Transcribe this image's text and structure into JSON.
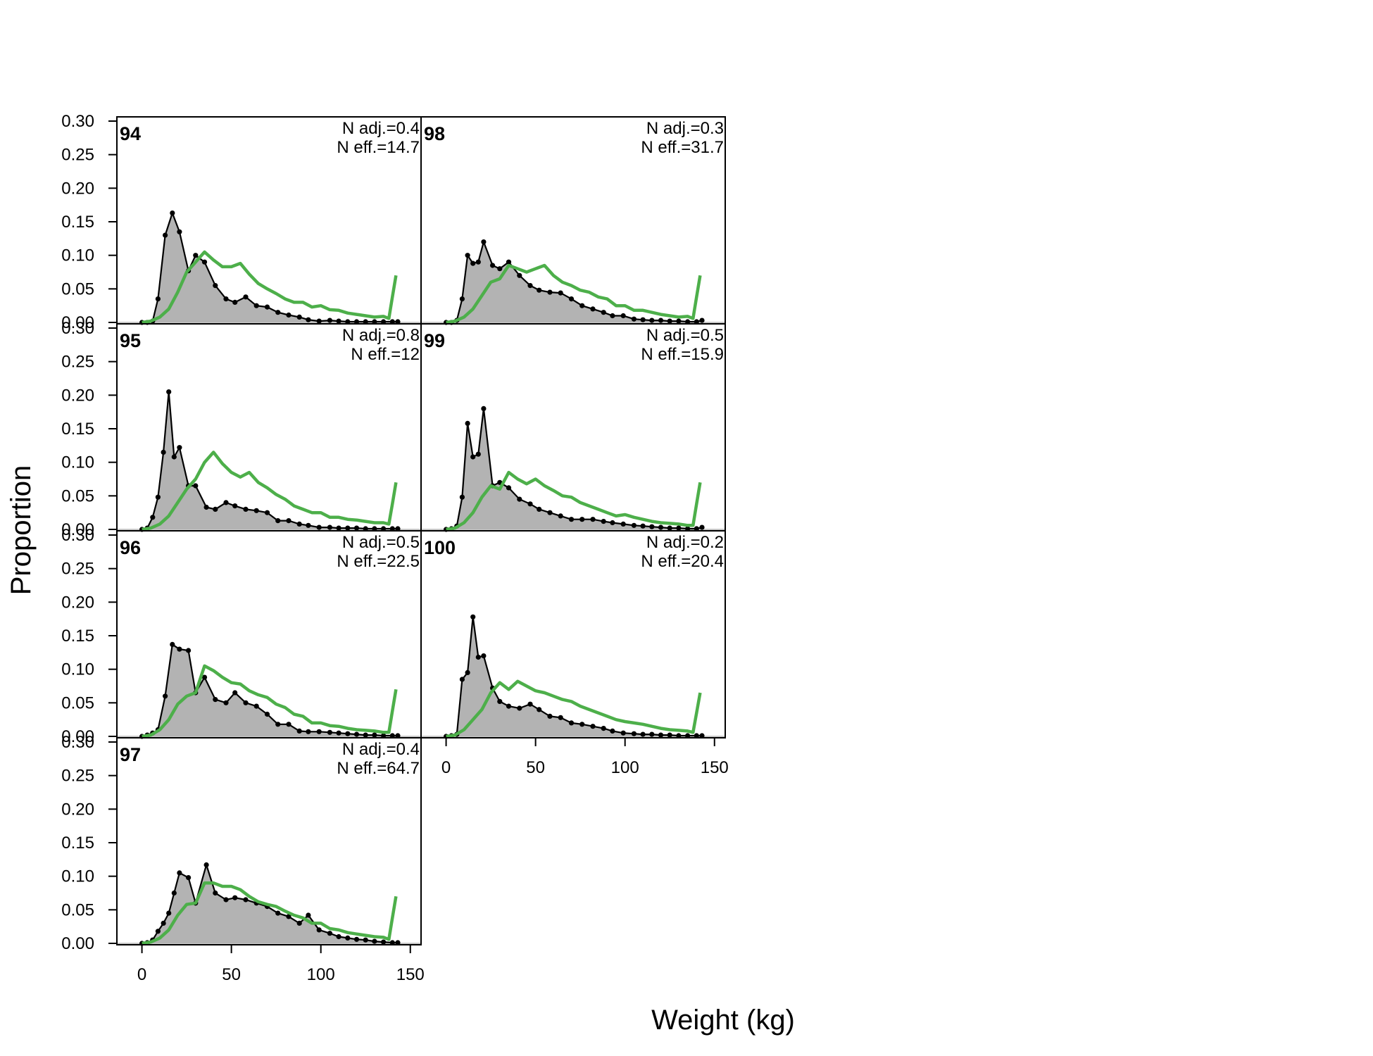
{
  "chart_data": {
    "type": "area",
    "xlabel": "Weight (kg)",
    "ylabel": "Proportion",
    "xlim": [
      -14,
      156
    ],
    "ylim": [
      0,
      0.3
    ],
    "x_ticks": [
      0,
      50,
      100,
      150
    ],
    "y_ticks": [
      0.0,
      0.05,
      0.1,
      0.15,
      0.2,
      0.25,
      0.3
    ],
    "colors": {
      "observed_fill": "#b3b3b3",
      "observed_line": "#000000",
      "expected_line": "#4daf4a",
      "zero_line": "#c8c8c8"
    },
    "x": [
      0,
      2,
      4,
      6,
      8,
      10,
      12,
      14,
      16,
      18,
      20,
      22,
      24,
      26,
      28,
      30,
      32,
      34,
      36,
      38,
      40,
      42,
      44,
      46,
      48,
      50,
      52,
      54,
      56,
      58,
      60,
      62,
      64,
      66,
      68,
      70,
      72,
      74,
      76,
      78,
      80,
      82,
      84,
      86,
      88,
      90,
      92,
      94,
      96,
      98,
      100,
      102,
      104,
      106,
      108,
      110,
      112,
      114,
      116,
      118,
      120,
      122,
      124,
      126,
      128,
      130,
      132,
      134,
      136,
      138,
      140,
      142
    ],
    "panels": [
      {
        "label": "94",
        "n_adj": "N adj.=0.4",
        "n_eff": "N eff.=14.7",
        "obs_x": [
          0,
          3,
          6,
          9,
          13,
          17,
          21,
          26,
          30,
          35,
          41,
          47,
          52,
          58,
          64,
          70,
          76,
          82,
          88,
          93,
          99,
          105,
          110,
          115,
          120,
          125,
          130,
          135,
          140,
          143
        ],
        "obs_y": [
          0.0,
          0.0,
          0.002,
          0.035,
          0.13,
          0.163,
          0.135,
          0.077,
          0.1,
          0.09,
          0.055,
          0.035,
          0.03,
          0.038,
          0.025,
          0.023,
          0.015,
          0.011,
          0.008,
          0.004,
          0.002,
          0.003,
          0.002,
          0.001,
          0.001,
          0.001,
          0.001,
          0.001,
          0.001,
          0.001
        ],
        "exp_x": [
          0,
          5,
          10,
          15,
          20,
          25,
          30,
          35,
          40,
          45,
          50,
          55,
          60,
          65,
          70,
          75,
          80,
          85,
          90,
          95,
          100,
          105,
          110,
          115,
          120,
          125,
          130,
          135,
          138,
          140,
          142
        ],
        "exp_y": [
          0.0,
          0.002,
          0.008,
          0.02,
          0.045,
          0.075,
          0.09,
          0.105,
          0.093,
          0.083,
          0.083,
          0.088,
          0.072,
          0.058,
          0.05,
          0.043,
          0.035,
          0.03,
          0.03,
          0.023,
          0.025,
          0.019,
          0.018,
          0.014,
          0.012,
          0.01,
          0.008,
          0.009,
          0.006,
          0.038,
          0.07
        ]
      },
      {
        "label": "95",
        "n_adj": "N adj.=0.8",
        "n_eff": "N eff.=12",
        "obs_x": [
          0,
          3,
          6,
          9,
          12,
          15,
          18,
          21,
          26,
          30,
          36,
          41,
          47,
          52,
          58,
          64,
          70,
          76,
          82,
          88,
          93,
          99,
          105,
          110,
          115,
          120,
          125,
          130,
          135,
          140,
          143
        ],
        "obs_y": [
          0.0,
          0.002,
          0.018,
          0.048,
          0.115,
          0.205,
          0.108,
          0.122,
          0.065,
          0.065,
          0.033,
          0.03,
          0.04,
          0.035,
          0.03,
          0.028,
          0.025,
          0.013,
          0.013,
          0.008,
          0.006,
          0.003,
          0.003,
          0.002,
          0.002,
          0.002,
          0.001,
          0.001,
          0.001,
          0.001,
          0.001
        ],
        "exp_x": [
          0,
          5,
          10,
          15,
          20,
          25,
          30,
          35,
          40,
          45,
          50,
          55,
          60,
          65,
          70,
          75,
          80,
          85,
          90,
          95,
          100,
          105,
          110,
          115,
          120,
          125,
          130,
          135,
          138,
          140,
          142
        ],
        "exp_y": [
          0.0,
          0.002,
          0.008,
          0.02,
          0.04,
          0.06,
          0.075,
          0.1,
          0.115,
          0.098,
          0.085,
          0.078,
          0.085,
          0.07,
          0.062,
          0.052,
          0.045,
          0.035,
          0.03,
          0.025,
          0.025,
          0.018,
          0.018,
          0.015,
          0.014,
          0.012,
          0.01,
          0.01,
          0.008,
          0.038,
          0.07
        ]
      },
      {
        "label": "96",
        "n_adj": "N adj.=0.5",
        "n_eff": "N eff.=22.5",
        "obs_x": [
          0,
          3,
          6,
          9,
          13,
          17,
          21,
          26,
          30,
          35,
          41,
          47,
          52,
          58,
          64,
          70,
          76,
          82,
          88,
          93,
          99,
          105,
          110,
          115,
          120,
          125,
          130,
          135,
          140,
          143
        ],
        "obs_y": [
          0.0,
          0.002,
          0.005,
          0.01,
          0.06,
          0.137,
          0.13,
          0.128,
          0.065,
          0.088,
          0.055,
          0.05,
          0.065,
          0.05,
          0.045,
          0.033,
          0.018,
          0.018,
          0.008,
          0.007,
          0.007,
          0.006,
          0.005,
          0.004,
          0.003,
          0.002,
          0.002,
          0.001,
          0.001,
          0.001
        ],
        "exp_x": [
          0,
          5,
          10,
          15,
          20,
          25,
          30,
          35,
          40,
          45,
          50,
          55,
          60,
          65,
          70,
          75,
          80,
          85,
          90,
          95,
          100,
          105,
          110,
          115,
          120,
          125,
          130,
          135,
          138,
          140,
          142
        ],
        "exp_y": [
          0.0,
          0.002,
          0.01,
          0.025,
          0.048,
          0.06,
          0.065,
          0.105,
          0.098,
          0.088,
          0.08,
          0.078,
          0.068,
          0.062,
          0.058,
          0.048,
          0.043,
          0.033,
          0.03,
          0.02,
          0.02,
          0.016,
          0.015,
          0.012,
          0.01,
          0.009,
          0.008,
          0.006,
          0.006,
          0.038,
          0.07
        ]
      },
      {
        "label": "97",
        "n_adj": "N adj.=0.4",
        "n_eff": "N eff.=64.7",
        "obs_x": [
          0,
          3,
          6,
          9,
          12,
          15,
          18,
          21,
          26,
          30,
          36,
          41,
          47,
          52,
          58,
          64,
          70,
          76,
          82,
          88,
          93,
          99,
          105,
          110,
          115,
          120,
          125,
          130,
          135,
          140,
          143
        ],
        "obs_y": [
          0.0,
          0.001,
          0.005,
          0.018,
          0.03,
          0.045,
          0.075,
          0.105,
          0.098,
          0.06,
          0.117,
          0.075,
          0.065,
          0.068,
          0.065,
          0.06,
          0.055,
          0.045,
          0.04,
          0.03,
          0.042,
          0.02,
          0.015,
          0.01,
          0.008,
          0.006,
          0.005,
          0.003,
          0.002,
          0.001,
          0.001
        ],
        "exp_x": [
          0,
          5,
          10,
          15,
          20,
          25,
          30,
          35,
          40,
          45,
          50,
          55,
          60,
          65,
          70,
          75,
          80,
          85,
          90,
          95,
          100,
          105,
          110,
          115,
          120,
          125,
          130,
          135,
          138,
          140,
          142
        ],
        "exp_y": [
          0.0,
          0.002,
          0.008,
          0.02,
          0.042,
          0.058,
          0.06,
          0.09,
          0.09,
          0.085,
          0.085,
          0.08,
          0.07,
          0.062,
          0.058,
          0.055,
          0.048,
          0.042,
          0.038,
          0.03,
          0.03,
          0.022,
          0.02,
          0.016,
          0.014,
          0.012,
          0.01,
          0.009,
          0.006,
          0.038,
          0.07
        ]
      },
      {
        "label": "98",
        "n_adj": "N adj.=0.3",
        "n_eff": "N eff.=31.7",
        "obs_x": [
          0,
          3,
          6,
          9,
          12,
          15,
          18,
          21,
          26,
          30,
          35,
          41,
          47,
          52,
          58,
          64,
          70,
          76,
          82,
          88,
          93,
          99,
          105,
          110,
          115,
          120,
          125,
          130,
          135,
          140,
          143
        ],
        "obs_y": [
          0.0,
          0.0,
          0.003,
          0.035,
          0.1,
          0.088,
          0.09,
          0.12,
          0.085,
          0.08,
          0.09,
          0.07,
          0.055,
          0.048,
          0.045,
          0.044,
          0.035,
          0.025,
          0.02,
          0.015,
          0.01,
          0.01,
          0.005,
          0.004,
          0.003,
          0.003,
          0.002,
          0.002,
          0.001,
          0.001,
          0.003
        ],
        "exp_x": [
          0,
          5,
          10,
          15,
          20,
          25,
          30,
          35,
          40,
          45,
          50,
          55,
          60,
          65,
          70,
          75,
          80,
          85,
          90,
          95,
          100,
          105,
          110,
          115,
          120,
          125,
          130,
          135,
          138,
          140,
          142
        ],
        "exp_y": [
          0.0,
          0.002,
          0.008,
          0.02,
          0.04,
          0.06,
          0.065,
          0.085,
          0.08,
          0.075,
          0.08,
          0.085,
          0.07,
          0.06,
          0.055,
          0.048,
          0.045,
          0.038,
          0.035,
          0.025,
          0.025,
          0.018,
          0.018,
          0.015,
          0.012,
          0.01,
          0.008,
          0.009,
          0.006,
          0.038,
          0.07
        ]
      },
      {
        "label": "99",
        "n_adj": "N adj.=0.5",
        "n_eff": "N eff.=15.9",
        "obs_x": [
          0,
          3,
          6,
          9,
          12,
          15,
          18,
          21,
          26,
          30,
          35,
          41,
          47,
          52,
          58,
          64,
          70,
          76,
          82,
          88,
          93,
          99,
          105,
          110,
          115,
          120,
          125,
          130,
          135,
          140,
          143
        ],
        "obs_y": [
          0.0,
          0.001,
          0.005,
          0.048,
          0.158,
          0.108,
          0.112,
          0.18,
          0.065,
          0.07,
          0.062,
          0.045,
          0.038,
          0.03,
          0.025,
          0.02,
          0.015,
          0.015,
          0.015,
          0.012,
          0.01,
          0.008,
          0.006,
          0.005,
          0.004,
          0.003,
          0.002,
          0.002,
          0.001,
          0.001,
          0.003
        ],
        "exp_x": [
          0,
          5,
          10,
          15,
          20,
          25,
          30,
          35,
          40,
          45,
          50,
          55,
          60,
          65,
          70,
          75,
          80,
          85,
          90,
          95,
          100,
          105,
          110,
          115,
          120,
          125,
          130,
          135,
          138,
          140,
          142
        ],
        "exp_y": [
          0.0,
          0.002,
          0.01,
          0.025,
          0.048,
          0.065,
          0.06,
          0.085,
          0.075,
          0.068,
          0.075,
          0.065,
          0.058,
          0.05,
          0.048,
          0.04,
          0.035,
          0.03,
          0.025,
          0.02,
          0.022,
          0.018,
          0.015,
          0.012,
          0.01,
          0.009,
          0.008,
          0.006,
          0.006,
          0.038,
          0.07
        ]
      },
      {
        "label": "100",
        "n_adj": "N adj.=0.2",
        "n_eff": "N eff.=20.4",
        "obs_x": [
          0,
          3,
          6,
          9,
          12,
          15,
          18,
          21,
          26,
          30,
          35,
          41,
          47,
          52,
          58,
          64,
          70,
          76,
          82,
          88,
          93,
          99,
          105,
          110,
          115,
          120,
          125,
          130,
          135,
          140,
          143
        ],
        "obs_y": [
          0.0,
          0.001,
          0.003,
          0.085,
          0.095,
          0.178,
          0.118,
          0.12,
          0.072,
          0.052,
          0.045,
          0.042,
          0.048,
          0.04,
          0.03,
          0.028,
          0.02,
          0.018,
          0.015,
          0.012,
          0.008,
          0.005,
          0.004,
          0.003,
          0.003,
          0.002,
          0.002,
          0.001,
          0.001,
          0.001,
          0.001
        ],
        "exp_x": [
          0,
          5,
          10,
          15,
          20,
          25,
          30,
          35,
          40,
          45,
          50,
          55,
          60,
          65,
          70,
          75,
          80,
          85,
          90,
          95,
          100,
          105,
          110,
          115,
          120,
          125,
          130,
          135,
          138,
          140,
          142
        ],
        "exp_y": [
          0.0,
          0.002,
          0.01,
          0.025,
          0.04,
          0.065,
          0.08,
          0.07,
          0.082,
          0.075,
          0.068,
          0.065,
          0.06,
          0.055,
          0.052,
          0.045,
          0.04,
          0.035,
          0.03,
          0.025,
          0.022,
          0.02,
          0.018,
          0.015,
          0.012,
          0.01,
          0.009,
          0.008,
          0.006,
          0.035,
          0.065
        ]
      }
    ]
  }
}
